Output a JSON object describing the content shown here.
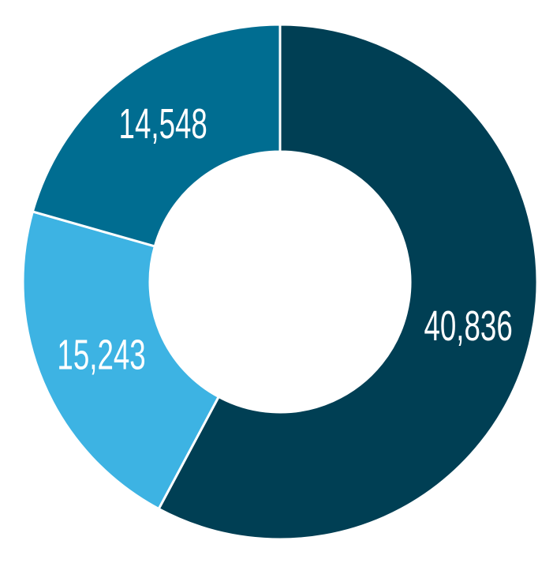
{
  "chart_data": {
    "type": "donut",
    "values": [
      40836,
      15243,
      14548
    ],
    "value_labels": [
      "40,836",
      "15,243",
      "14,548"
    ],
    "colors": [
      "#003f54",
      "#3db3e3",
      "#006d91"
    ]
  }
}
